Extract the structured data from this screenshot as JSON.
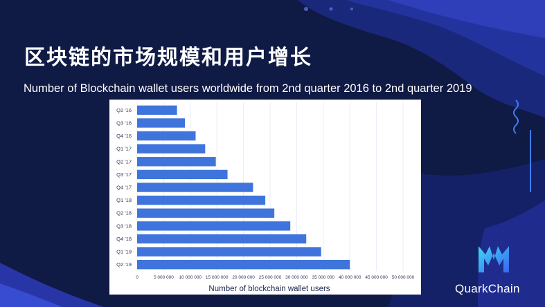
{
  "slide": {
    "title": "区块链的市场规模和用户增长",
    "subtitle": "Number of Blockchain wallet users worldwide from 2nd quarter 2016 to 2nd quarter 2019",
    "brand": "QuarkChain"
  },
  "colors": {
    "background": "#0f1a45",
    "bar": "#3f74dc",
    "grid": "#e8ecf5",
    "accent": "#3f7cf0"
  },
  "chart_data": {
    "type": "bar",
    "orientation": "horizontal",
    "categories": [
      "Q2 '16",
      "Q3 '16",
      "Q4 '16",
      "Q1 '17",
      "Q2 '17",
      "Q3 '17",
      "Q4 '17",
      "Q1 '18",
      "Q2 '18",
      "Q3 '18",
      "Q4 '18",
      "Q1 '19",
      "Q2 '19"
    ],
    "values": [
      7500000,
      9000000,
      11000000,
      12800000,
      14800000,
      17000000,
      21800000,
      24100000,
      25800000,
      28800000,
      31800000,
      34600000,
      40000000
    ],
    "xlabel": "Number of blockchain wallet users",
    "xlim": [
      0,
      50000000
    ],
    "xticks": [
      0,
      5000000,
      10000000,
      15000000,
      20000000,
      25000000,
      30000000,
      35000000,
      40000000,
      45000000,
      50000000
    ],
    "xtick_labels": [
      "0",
      "5 000 000",
      "10 000 000",
      "15 000 000",
      "20 000 000",
      "25 000 000",
      "30 000 000",
      "35 000 000",
      "40 000 000",
      "45 000 000",
      "50 000 000"
    ],
    "grid": true
  }
}
